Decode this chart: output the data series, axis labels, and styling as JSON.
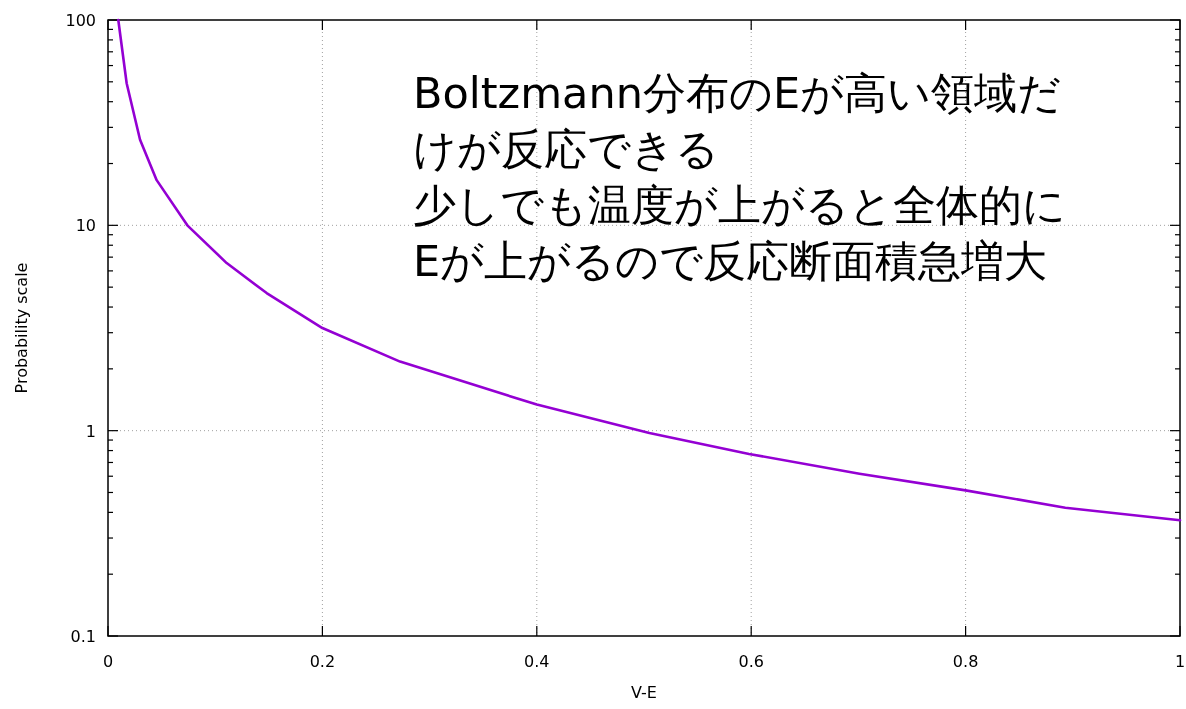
{
  "chart_data": {
    "type": "line",
    "xlabel": "V-E",
    "ylabel": "Probability scale",
    "log": "y",
    "grid": true,
    "xlim": [
      0,
      1
    ],
    "ylim": [
      0.1,
      100
    ],
    "xticks": [
      0,
      0.2,
      0.4,
      0.6,
      0.8,
      1
    ],
    "yticks": [
      {
        "value": 0.1,
        "label": "0.1"
      },
      {
        "value": 0.2,
        "label": null
      },
      {
        "value": 0.3,
        "label": null
      },
      {
        "value": 0.4,
        "label": null
      },
      {
        "value": 0.5,
        "label": null
      },
      {
        "value": 0.6,
        "label": null
      },
      {
        "value": 0.7,
        "label": null
      },
      {
        "value": 0.8,
        "label": null
      },
      {
        "value": 0.9,
        "label": null
      },
      1,
      {
        "value": 2,
        "label": null
      },
      {
        "value": 3,
        "label": null
      },
      {
        "value": 4,
        "label": null
      },
      {
        "value": 5,
        "label": null
      },
      {
        "value": 6,
        "label": null
      },
      {
        "value": 7,
        "label": null
      },
      {
        "value": 8,
        "label": null
      },
      {
        "value": 9,
        "label": null
      },
      10,
      {
        "value": 20,
        "label": null
      },
      {
        "value": 30,
        "label": null
      },
      {
        "value": 40,
        "label": null
      },
      {
        "value": 50,
        "label": null
      },
      {
        "value": 60,
        "label": null
      },
      {
        "value": 70,
        "label": null
      },
      {
        "value": 80,
        "label": null
      },
      {
        "value": 90,
        "label": null
      },
      100
    ],
    "annotations": [
      "Boltzmann分布のEが高い領域だけが反応できる",
      "少しでも温度が上がると全体的にEが上がるので反応断面積急増大"
    ],
    "series": [
      {
        "color": "#9400d3",
        "x": [
          0.0096,
          0.0174,
          0.0299,
          0.0454,
          0.074,
          0.1107,
          0.148,
          0.2,
          0.2724,
          0.4,
          0.505,
          0.598,
          0.701,
          0.8,
          0.893,
          1.0
        ],
        "values": [
          100,
          49.2,
          26.1,
          16.6,
          10,
          6.55,
          4.68,
          3.16,
          2.17,
          1.34,
          0.975,
          0.77,
          0.617,
          0.512,
          0.421,
          0.366
        ]
      }
    ]
  }
}
